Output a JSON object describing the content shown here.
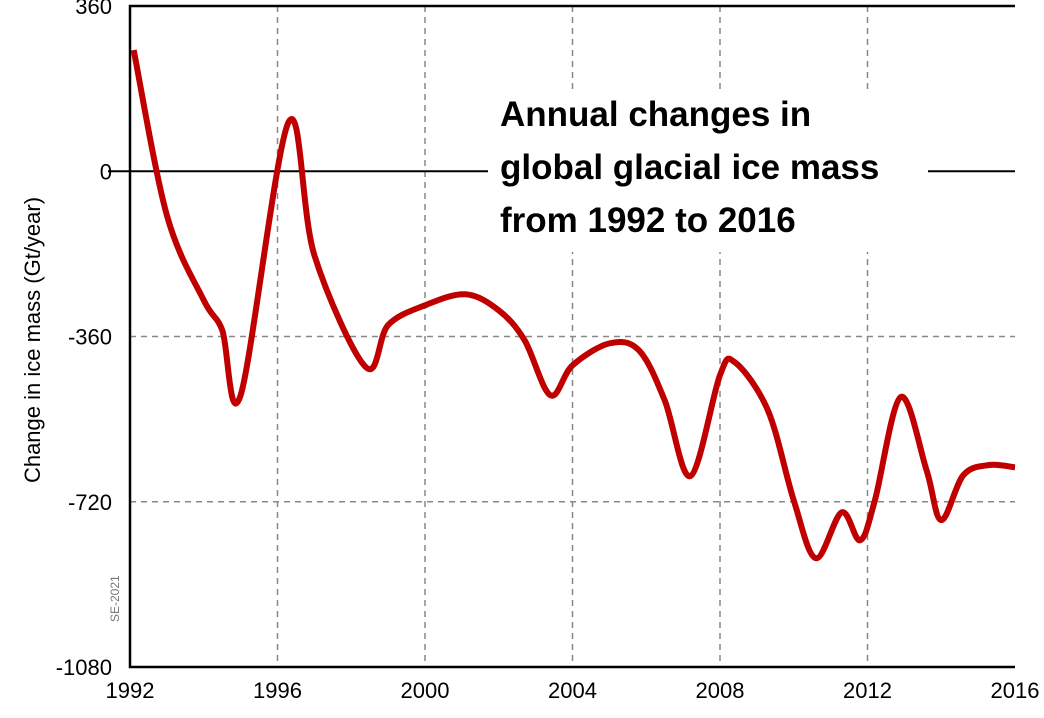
{
  "chart_data": {
    "type": "line",
    "title": [
      "Annual changes in",
      "global glacial ice mass",
      "from 1992 to 2016"
    ],
    "xlabel": "",
    "ylabel": "Change in ice mass (Gt/year)",
    "xlim": [
      1992,
      2016
    ],
    "ylim": [
      -1080,
      360
    ],
    "xticks": [
      "1992",
      "1996",
      "2000",
      "2004",
      "2008",
      "2012",
      "2016"
    ],
    "yticks": [
      "360",
      "0",
      "-360",
      "-720",
      "-1080"
    ],
    "grid": "dashed at x ticks and y = -360, -720; solid line at y = 0",
    "watermark": "SE-2021",
    "line_color": "#c00000",
    "series": [
      {
        "x": [
          1992.1,
          1993,
          1994,
          1994.5,
          1995,
          1996.3,
          1997,
          1998.4,
          1999,
          2000,
          2001.1,
          2002,
          2002.7,
          2003.4,
          2004,
          2005,
          2005.8,
          2006.5,
          2007.2,
          2008,
          2008.4,
          2009.3,
          2010,
          2010.6,
          2011.3,
          2011.8,
          2012.2,
          2012.9,
          2013.6,
          2014,
          2014.6,
          2015.3,
          2016
        ],
        "y": [
          264,
          -96,
          -281,
          -346,
          -488,
          107,
          -183,
          -427,
          -335,
          -292,
          -268,
          -303,
          -368,
          -488,
          -423,
          -375,
          -390,
          -499,
          -664,
          -444,
          -416,
          -521,
          -717,
          -843,
          -743,
          -804,
          -717,
          -492,
          -651,
          -760,
          -662,
          -640,
          -645
        ]
      }
    ]
  }
}
